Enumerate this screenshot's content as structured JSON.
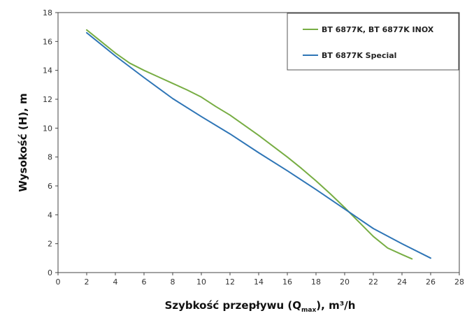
{
  "chart_data": {
    "type": "line",
    "xlabel": "Szybkość przepływu (Q",
    "xlabel_sub": "max",
    "xlabel_tail": "), m³/h",
    "ylabel": "Wysokość (H), m",
    "xlim": [
      0,
      28
    ],
    "ylim": [
      0,
      18
    ],
    "xticks": [
      0,
      2,
      4,
      6,
      8,
      10,
      12,
      14,
      16,
      18,
      20,
      22,
      24,
      26,
      28
    ],
    "yticks": [
      0,
      2,
      4,
      6,
      8,
      10,
      12,
      14,
      16,
      18
    ],
    "grid": false,
    "legend_position": "top-right",
    "series": [
      {
        "name": "BT 6877K, BT 6877K INOX",
        "color": "#77AD43",
        "x": [
          2.0,
          3.0,
          4.0,
          5.0,
          6.0,
          7.0,
          8.0,
          9.0,
          10.0,
          11.0,
          12.0,
          13.0,
          14.0,
          15.0,
          16.0,
          17.0,
          18.0,
          19.0,
          20.0,
          21.0,
          22.0,
          23.0,
          24.0,
          24.7
        ],
        "y": [
          16.8,
          16.0,
          15.2,
          14.5,
          14.0,
          13.55,
          13.1,
          12.65,
          12.15,
          11.5,
          10.9,
          10.2,
          9.5,
          8.75,
          8.0,
          7.2,
          6.35,
          5.45,
          4.5,
          3.5,
          2.5,
          1.7,
          1.25,
          0.95
        ]
      },
      {
        "name": "BT 6877K Special",
        "color": "#2E75B6",
        "x": [
          2.0,
          4.0,
          6.0,
          8.0,
          10.0,
          12.0,
          14.0,
          16.0,
          18.0,
          20.0,
          22.0,
          24.0,
          26.0
        ],
        "y": [
          16.6,
          15.0,
          13.5,
          12.05,
          10.8,
          9.6,
          8.3,
          7.05,
          5.75,
          4.4,
          3.05,
          2.0,
          1.0
        ]
      }
    ]
  }
}
